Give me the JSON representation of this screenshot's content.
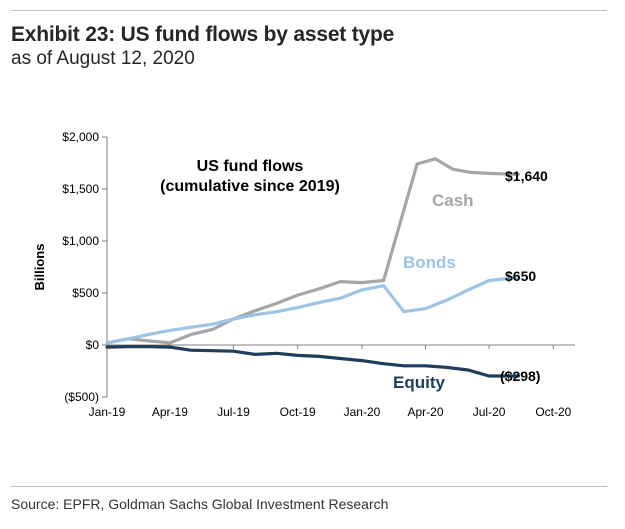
{
  "header": {
    "title": "Exhibit 23: US fund flows by asset type",
    "subtitle": "as of August 12, 2020"
  },
  "footer": {
    "source": "Source: EPFR, Goldman Sachs Global Investment Research"
  },
  "colors": {
    "cash": "#a6a6a6",
    "bonds": "#9dc3e6",
    "equity": "#1f3d5c",
    "axis": "#808080",
    "text": "#262626"
  },
  "chart_data": {
    "type": "line",
    "annotation": "US fund flows\n(cumulative since 2019)",
    "xlabel": "",
    "ylabel": "Billions",
    "grid": false,
    "ylim": [
      -500,
      2000
    ],
    "yticks": [
      -500,
      0,
      500,
      1000,
      1500,
      2000
    ],
    "ytick_labels": [
      "($500)",
      "$0",
      "$500",
      "$1,000",
      "$1,500",
      "$2,000"
    ],
    "xlim": [
      "2019-01-01",
      "2020-11-01"
    ],
    "xticks": [
      "2019-01-01",
      "2019-04-01",
      "2019-07-01",
      "2019-10-01",
      "2020-01-01",
      "2020-04-01",
      "2020-07-01",
      "2020-10-01"
    ],
    "xtick_labels": [
      "Jan-19",
      "Apr-19",
      "Jul-19",
      "Oct-19",
      "Jan-20",
      "Apr-20",
      "Jul-20",
      "Oct-20"
    ],
    "series": [
      {
        "name": "Cash",
        "color": "#a6a6a6",
        "end_label": "$1,640",
        "x": [
          "2019-01-01",
          "2019-02-01",
          "2019-03-01",
          "2019-04-01",
          "2019-05-01",
          "2019-06-01",
          "2019-07-01",
          "2019-08-01",
          "2019-09-01",
          "2019-10-01",
          "2019-11-01",
          "2019-12-01",
          "2020-01-01",
          "2020-02-01",
          "2020-03-01",
          "2020-03-20",
          "2020-04-15",
          "2020-05-10",
          "2020-06-05",
          "2020-07-01",
          "2020-08-12"
        ],
        "y": [
          20,
          60,
          40,
          20,
          100,
          150,
          250,
          330,
          400,
          480,
          540,
          610,
          600,
          620,
          1300,
          1740,
          1790,
          1690,
          1660,
          1650,
          1640
        ]
      },
      {
        "name": "Bonds",
        "color": "#9dc3e6",
        "end_label": "$650",
        "x": [
          "2019-01-01",
          "2019-02-01",
          "2019-03-01",
          "2019-04-01",
          "2019-05-01",
          "2019-06-01",
          "2019-07-01",
          "2019-08-01",
          "2019-09-01",
          "2019-10-01",
          "2019-11-01",
          "2019-12-01",
          "2020-01-01",
          "2020-02-01",
          "2020-03-01",
          "2020-04-01",
          "2020-05-01",
          "2020-06-01",
          "2020-07-01",
          "2020-08-12"
        ],
        "y": [
          20,
          60,
          100,
          140,
          170,
          200,
          250,
          290,
          320,
          360,
          410,
          450,
          530,
          570,
          320,
          350,
          430,
          530,
          620,
          650
        ]
      },
      {
        "name": "Equity",
        "color": "#1f3d5c",
        "end_label": "($298)",
        "x": [
          "2019-01-01",
          "2019-02-01",
          "2019-03-01",
          "2019-04-01",
          "2019-05-01",
          "2019-06-01",
          "2019-07-01",
          "2019-08-01",
          "2019-09-01",
          "2019-10-01",
          "2019-11-01",
          "2019-12-01",
          "2020-01-01",
          "2020-02-01",
          "2020-03-01",
          "2020-04-01",
          "2020-05-01",
          "2020-06-01",
          "2020-07-01",
          "2020-08-12"
        ],
        "y": [
          -20,
          -15,
          -15,
          -20,
          -50,
          -55,
          -60,
          -90,
          -80,
          -100,
          -110,
          -130,
          -150,
          -180,
          -200,
          -200,
          -215,
          -240,
          -298,
          -298
        ]
      }
    ]
  }
}
